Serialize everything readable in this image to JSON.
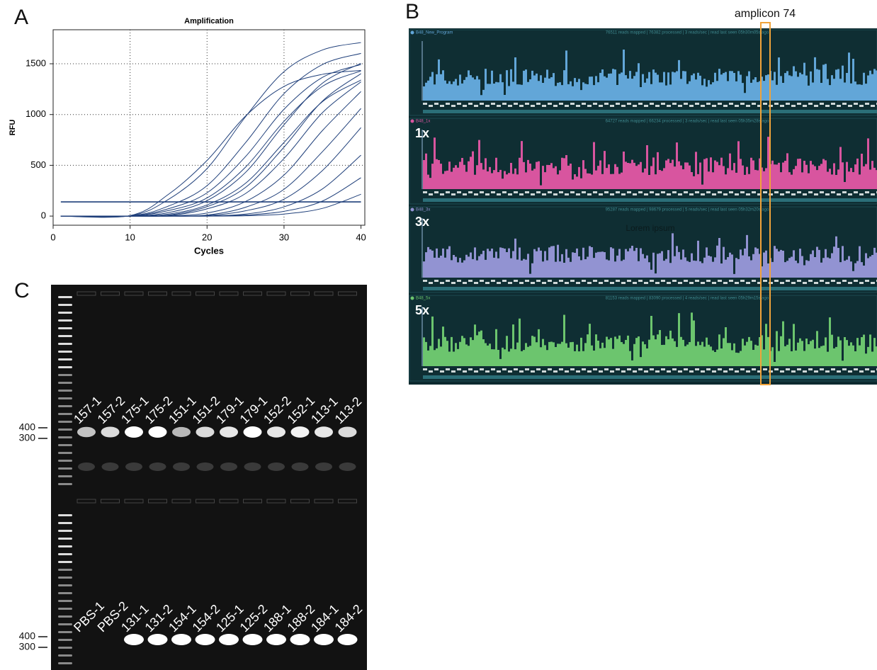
{
  "panel_labels": [
    "A",
    "B",
    "C"
  ],
  "chart_data": {
    "type": "line",
    "title": "Amplification",
    "x_label": "Cycles",
    "y_label": "RFU",
    "xlim": [
      0,
      40.5
    ],
    "ylim": [
      -90,
      1835
    ],
    "xticks": [
      0,
      10,
      20,
      30,
      40
    ],
    "yticks": [
      0,
      500,
      1000,
      1500
    ],
    "grid": true,
    "color": "#1f3f7a",
    "threshold": 140,
    "x": [
      1,
      10,
      15,
      20,
      25,
      30,
      35,
      40
    ],
    "series": [
      {
        "values": [
          0,
          5,
          215,
          548,
          985,
          1277,
          1396,
          1434
        ]
      },
      {
        "values": [
          0,
          3,
          165,
          468,
          978,
          1423,
          1636,
          1709
        ]
      },
      {
        "values": [
          0,
          2,
          99,
          300,
          723,
          1206,
          1493,
          1602
        ]
      },
      {
        "values": [
          0,
          1,
          73,
          229,
          586,
          1052,
          1366,
          1493
        ]
      },
      {
        "values": [
          0,
          1,
          55,
          179,
          482,
          933,
          1278,
          1430
        ]
      },
      {
        "values": [
          0,
          0,
          35,
          152,
          430,
          899,
          1309,
          1504
        ]
      },
      {
        "values": [
          0,
          0,
          20,
          110,
          323,
          725,
          1127,
          1340
        ]
      },
      {
        "values": [
          0,
          0,
          10,
          93,
          282,
          679,
          1133,
          1403
        ]
      },
      {
        "values": [
          0,
          0,
          5,
          71,
          222,
          567,
          1019,
          1322
        ]
      },
      {
        "values": [
          0,
          0,
          2,
          30,
          143,
          404,
          843,
          1227
        ]
      },
      {
        "values": [
          0,
          0,
          0,
          10,
          87,
          264,
          635,
          1060
        ]
      },
      {
        "values": [
          0,
          0,
          0,
          5,
          52,
          167,
          449,
          871
        ]
      },
      {
        "values": [
          0,
          0,
          0,
          2,
          20,
          91,
          268,
          600
        ]
      },
      {
        "values": [
          0,
          0,
          0,
          0,
          10,
          47,
          148,
          378
        ]
      },
      {
        "values": [
          0,
          0,
          0,
          0,
          3,
          20,
          76,
          215
        ]
      }
    ]
  },
  "sequencing": {
    "annotation": "amplicon 74",
    "note": "Lorem ipsum",
    "tracks": [
      {
        "name": "B48_New_Program",
        "status": "76511 reads mapped | 76382 processed | 3 reads/sec | read last seen 05h30m05s ago",
        "color": "#62a6d8"
      },
      {
        "name": "B48_1x",
        "label": "1x",
        "status": "64727 reads mapped | 66234 processed | 3 reads/sec | read last seen 05h35m28s ago",
        "color": "#d8559f"
      },
      {
        "name": "B48_3x",
        "label": "3x",
        "status": "95287 reads mapped | 98679 processed | 5 reads/sec | read last seen 05h32m20s ago",
        "color": "#9293d2"
      },
      {
        "name": "B48_5x",
        "label": "5x",
        "status": "81153 reads mapped | 83090 processed | 4 reads/sec | read last seen 05h29m15s ago",
        "color": "#6cc56e"
      }
    ]
  },
  "gel": {
    "markers": [
      400,
      300
    ],
    "top_lanes": [
      "157-1",
      "157-2",
      "175-1",
      "175-2",
      "151-1",
      "151-2",
      "179-1",
      "179-1",
      "152-2",
      "152-1",
      "113-1",
      "113-2"
    ],
    "bottom_lanes": [
      "PBS-1",
      "PBS-2",
      "131-1",
      "131-2",
      "154-1",
      "154-2",
      "125-1",
      "125-2",
      "188-1",
      "188-2",
      "184-1",
      "184-2"
    ]
  }
}
